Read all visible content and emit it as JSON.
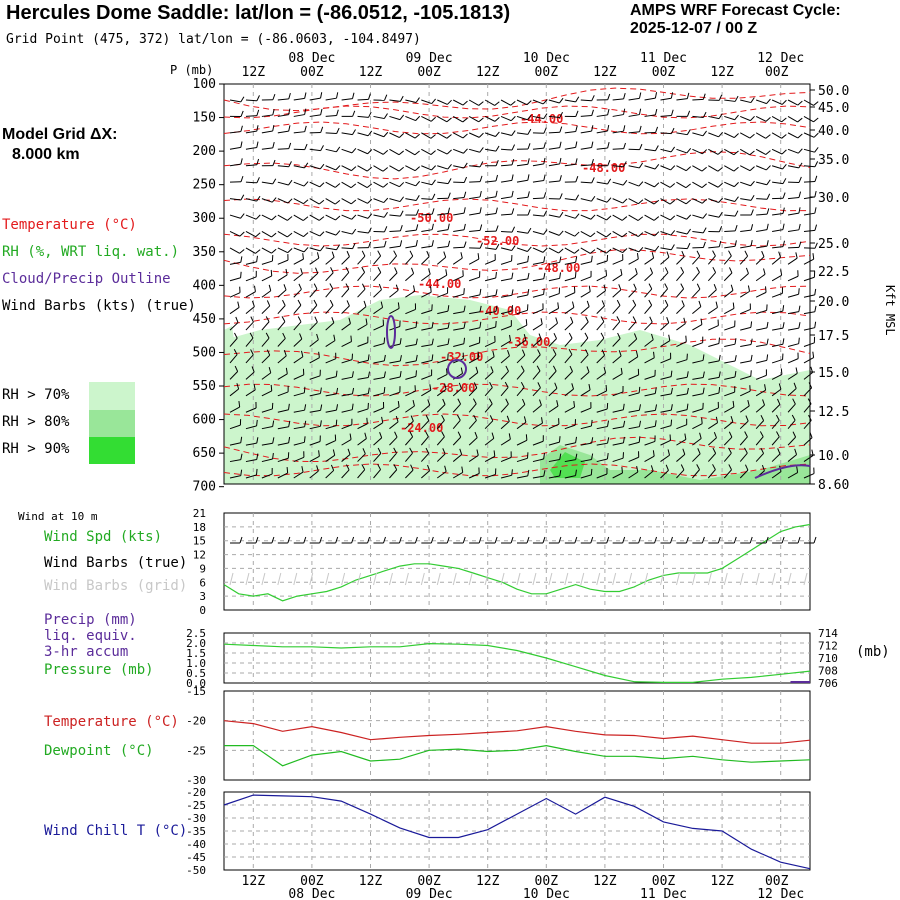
{
  "header": {
    "title": "Hercules Dome Saddle:  lat/lon = (-86.0512, -105.1813)",
    "cycle_label": "AMPS WRF Forecast Cycle:",
    "cycle_value": "2025-12-07 / 00  Z",
    "grid_point": "Grid Point (475, 372) lat/lon = (-86.0603, -104.8497)"
  },
  "model_grid": {
    "label": "Model Grid ΔX:",
    "value": "8.000 km"
  },
  "time_axis": {
    "hour_labels": [
      "12Z",
      "00Z",
      "12Z",
      "00Z",
      "12Z",
      "00Z",
      "12Z",
      "00Z",
      "12Z",
      "00Z"
    ],
    "date_labels": [
      "08 Dec",
      "09 Dec",
      "10 Dec",
      "11 Dec",
      "12 Dec"
    ]
  },
  "sounding_panel": {
    "pressure_axis_label": "P (mb)",
    "pressure_ticks": [
      "100",
      "150",
      "200",
      "250",
      "300",
      "350",
      "400",
      "450",
      "500",
      "550",
      "600",
      "650",
      "700"
    ],
    "height_axis_label": "Kft MSL",
    "height_ticks": [
      "50.0",
      "45.0",
      "40.0",
      "35.0",
      "30.0",
      "25.0",
      "22.5",
      "20.0",
      "17.5",
      "15.0",
      "12.5",
      "10.0",
      "8.60"
    ],
    "legend": {
      "temperature": "Temperature (°C)",
      "rh": "RH (%, WRT liq. wat.)",
      "cloud": "Cloud/Precip Outline",
      "wind": "Wind Barbs (kts) (true)"
    },
    "rh_key": [
      "RH > 70%",
      "RH > 80%",
      "RH > 90%"
    ],
    "colors": {
      "temperature": "#e31a1c",
      "rh70": "#ccf5cc",
      "rh80": "#99e699",
      "rh90": "#33dd33",
      "cloud": "#5b2c9a",
      "barb": "#000000"
    },
    "isotherm_labels": [
      "-44.00",
      "-48.00",
      "-50.00",
      "-52.00",
      "-48.00",
      "-44.00",
      "-40.00",
      "-36.00",
      "-32.00",
      "-28.00",
      "-24.00"
    ]
  },
  "wind_panel": {
    "title": "Wind at 10 m",
    "legend_speed": "Wind Spd (kts)",
    "legend_barbs_true": "Wind Barbs (true)",
    "legend_barbs_grid": "Wind Barbs (grid)",
    "y_ticks": [
      "21",
      "18",
      "15",
      "12",
      "9",
      "6",
      "3",
      "0"
    ]
  },
  "precip_panel": {
    "legend_precip_1": "Precip (mm)",
    "legend_precip_2": "liq. equiv.",
    "legend_precip_3": "3-hr accum",
    "legend_pressure": "Pressure (mb)",
    "left_ticks": [
      "2.5",
      "2.0",
      "1.5",
      "1.0",
      "0.5",
      "0.0"
    ],
    "right_ticks": [
      "714",
      "712",
      "710",
      "708",
      "706"
    ],
    "right_unit": "(mb)"
  },
  "temp_panel": {
    "legend_temp": "Temperature (°C)",
    "legend_dew": "Dewpoint (°C)",
    "y_ticks": [
      "-15",
      "-20",
      "-25",
      "-30"
    ]
  },
  "chill_panel": {
    "legend": "Wind Chill T (°C)",
    "y_ticks": [
      "-20",
      "-25",
      "-30",
      "-35",
      "-40",
      "-45",
      "-50"
    ]
  },
  "chart_data": [
    {
      "type": "line",
      "panel": "wind_speed_10m",
      "x": [
        0,
        3,
        6,
        9,
        12,
        15,
        18,
        21,
        24,
        27,
        30,
        33,
        36,
        39,
        42,
        45,
        48,
        51,
        54,
        57,
        60,
        63,
        66,
        69,
        72,
        75,
        78,
        81,
        84,
        87,
        90,
        93,
        96,
        99,
        102,
        105,
        108,
        111,
        114,
        117,
        120
      ],
      "x_unit": "forecast hour from 2025-12-07 06Z",
      "ylim": [
        0,
        21
      ],
      "series": [
        {
          "name": "Wind Spd (kts)",
          "values": [
            5.5,
            3.5,
            3.0,
            3.5,
            2.0,
            3.0,
            3.5,
            4.0,
            5.0,
            6.5,
            7.5,
            8.5,
            9.5,
            10.0,
            10.0,
            9.5,
            9.0,
            8.0,
            7.0,
            6.0,
            4.5,
            3.5,
            3.5,
            4.5,
            5.5,
            4.5,
            4.0,
            4.0,
            5.0,
            6.5,
            7.5,
            8.0,
            8.0,
            8.0,
            9.0,
            11.0,
            13.0,
            15.0,
            17.0,
            18.0,
            18.5
          ]
        }
      ]
    },
    {
      "type": "line",
      "panel": "surface_pressure",
      "x": [
        0,
        6,
        12,
        18,
        24,
        30,
        36,
        42,
        48,
        54,
        60,
        66,
        72,
        78,
        84,
        90,
        96,
        102,
        108,
        114,
        120
      ],
      "ylim": [
        706,
        714
      ],
      "series": [
        {
          "name": "Pressure (mb)",
          "values": [
            712.2,
            712.0,
            711.8,
            711.8,
            711.6,
            711.8,
            711.8,
            712.3,
            712.2,
            712.0,
            711.2,
            710.0,
            708.6,
            707.2,
            706.2,
            706.1,
            706.1,
            706.6,
            706.9,
            707.4,
            707.9
          ]
        },
        {
          "name": "Precip (mm)",
          "values": [
            0,
            0,
            0,
            0,
            0,
            0,
            0,
            0,
            0,
            0,
            0,
            0,
            0,
            0,
            0,
            0,
            0,
            0,
            0,
            0,
            0.05
          ]
        }
      ]
    },
    {
      "type": "line",
      "panel": "temperature_dewpoint",
      "x": [
        0,
        6,
        12,
        18,
        24,
        30,
        36,
        42,
        48,
        54,
        60,
        66,
        72,
        78,
        84,
        90,
        96,
        102,
        108,
        114,
        120
      ],
      "ylim": [
        -30,
        -15
      ],
      "series": [
        {
          "name": "Temperature (°C)",
          "values": [
            -20.0,
            -20.5,
            -21.8,
            -21.0,
            -22.0,
            -23.2,
            -22.8,
            -22.5,
            -22.3,
            -22.0,
            -21.7,
            -21.0,
            -21.8,
            -22.4,
            -22.5,
            -23.0,
            -22.6,
            -23.2,
            -23.8,
            -23.8,
            -23.3
          ]
        },
        {
          "name": "Dewpoint (°C)",
          "values": [
            -24.2,
            -24.2,
            -27.6,
            -25.8,
            -25.2,
            -26.8,
            -26.5,
            -25.0,
            -24.8,
            -25.2,
            -25.0,
            -24.2,
            -25.2,
            -26.0,
            -26.0,
            -26.4,
            -26.0,
            -26.6,
            -27.0,
            -26.8,
            -26.6
          ]
        }
      ]
    },
    {
      "type": "line",
      "panel": "wind_chill",
      "x": [
        0,
        6,
        12,
        18,
        24,
        30,
        36,
        42,
        48,
        54,
        60,
        66,
        72,
        78,
        84,
        90,
        96,
        102,
        108,
        114,
        120
      ],
      "ylim": [
        -50,
        -20
      ],
      "series": [
        {
          "name": "Wind Chill T (°C)",
          "values": [
            -25.0,
            -21.2,
            -21.5,
            -21.8,
            -23.5,
            -28.5,
            -33.8,
            -37.5,
            -37.5,
            -34.5,
            -28.5,
            -22.5,
            -28.5,
            -22.0,
            -25.5,
            -31.5,
            -34.0,
            -35.0,
            -42.0,
            -47.0,
            -49.5
          ]
        }
      ]
    }
  ]
}
